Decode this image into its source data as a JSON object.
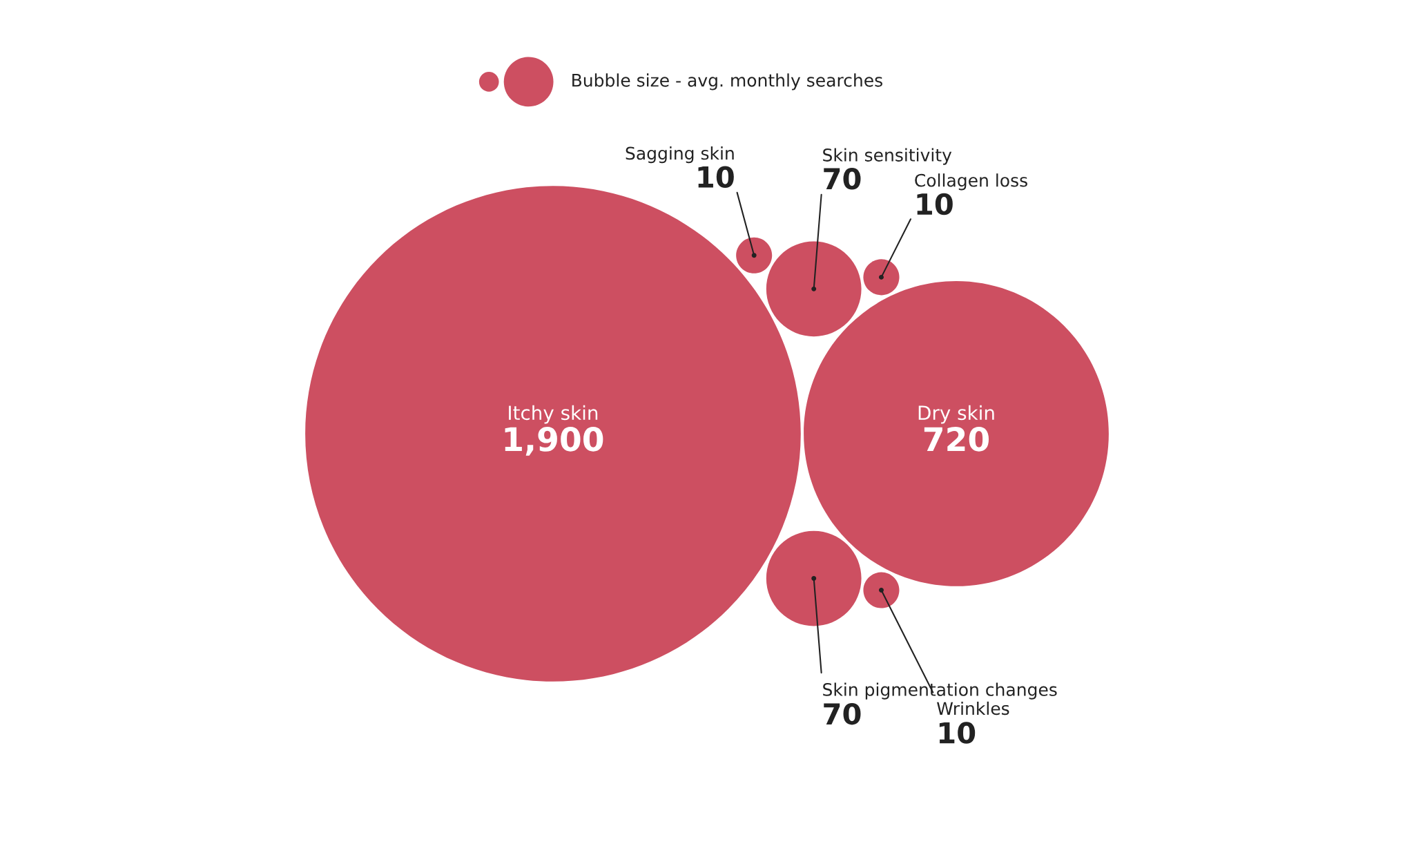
{
  "chart_data": {
    "type": "other",
    "legend_title": "Bubble size - avg. monthly searches",
    "color": "#cd4f61",
    "categories": [
      "Itchy skin",
      "Dry skin",
      "Skin sensitivity",
      "Skin pigmentation changes",
      "Wrinkles",
      "Collagen loss",
      "Sagging skin"
    ],
    "values": [
      1900,
      720,
      70,
      70,
      10,
      10,
      10
    ],
    "value_labels": [
      "1,900",
      "720",
      "70",
      "70",
      "10",
      "10",
      "10"
    ]
  }
}
